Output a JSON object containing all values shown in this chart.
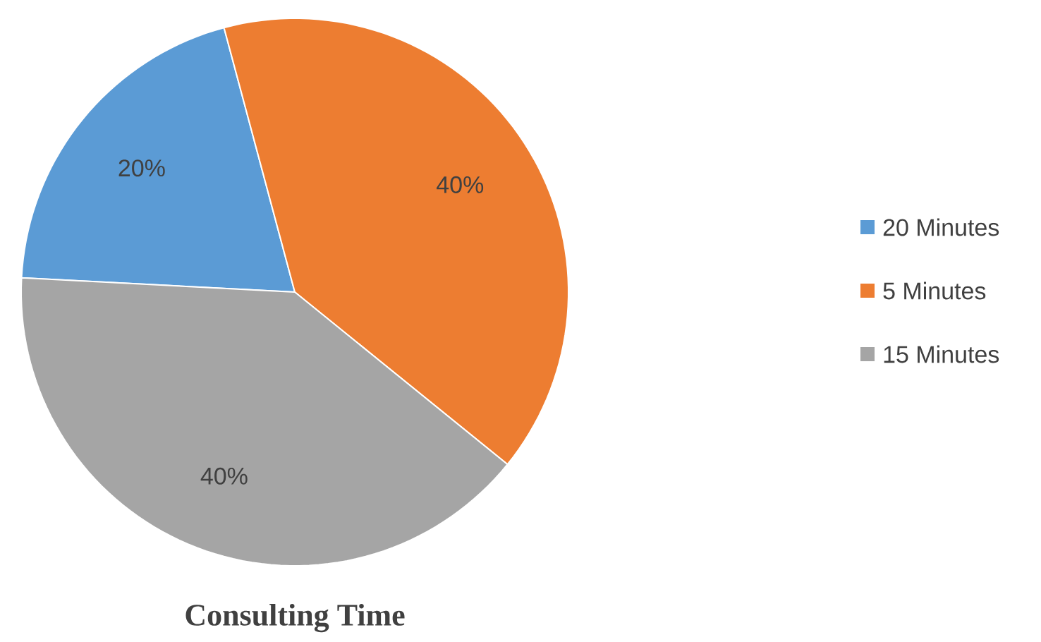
{
  "chart_data": {
    "type": "pie",
    "title": "Consulting Time",
    "categories": [
      "20 Minutes",
      "5 Minutes",
      "15 Minutes"
    ],
    "values": [
      20,
      40,
      40
    ],
    "colors": [
      "#5b9bd5",
      "#ed7d31",
      "#a5a5a5"
    ],
    "value_labels": [
      "20%",
      "40%",
      "40%"
    ],
    "legend": "right"
  }
}
